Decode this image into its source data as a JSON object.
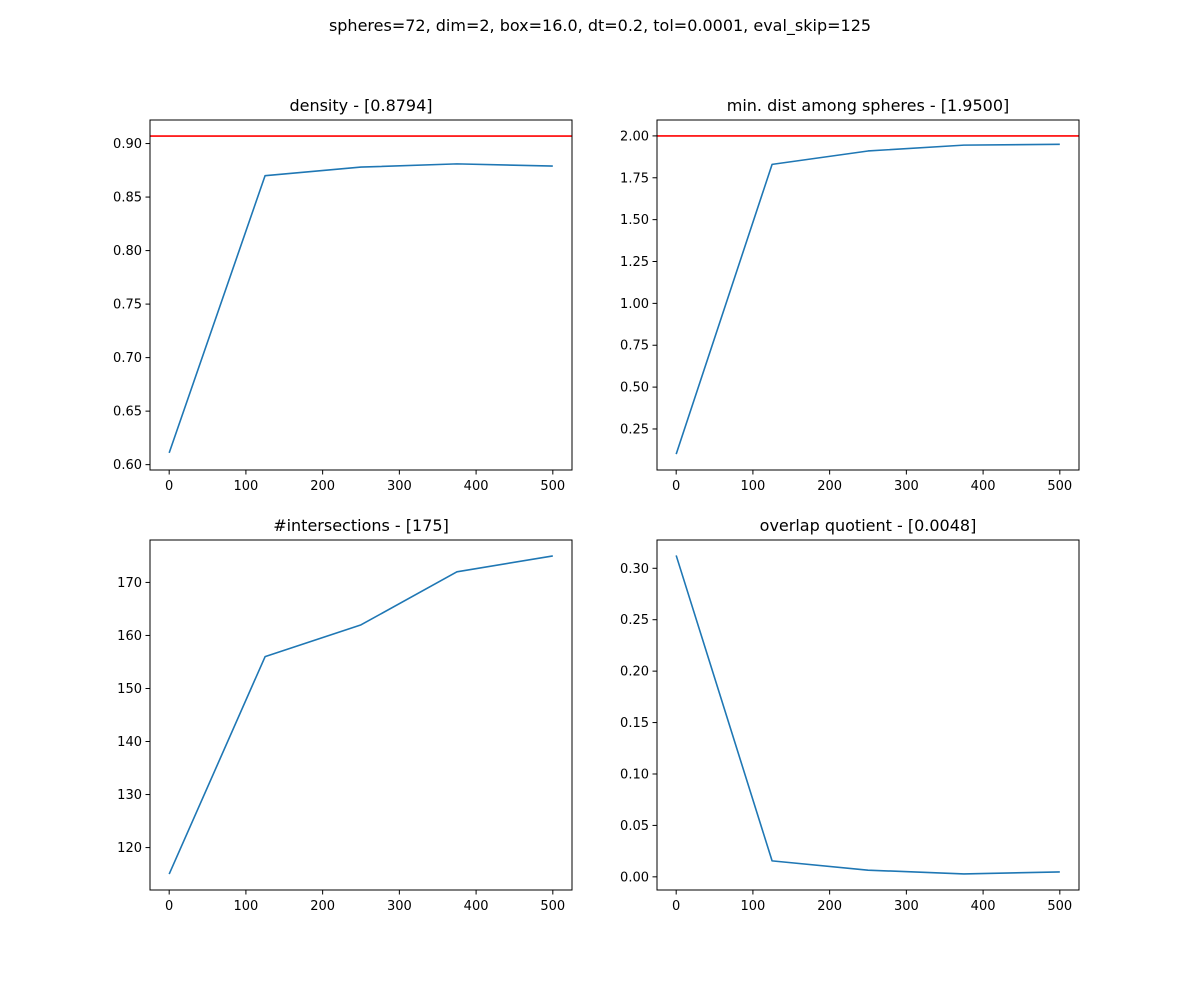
{
  "figure": {
    "suptitle": "spheres=72, dim=2, box=16.0, dt=0.2, tol=0.0001, eval_skip=125"
  },
  "colors": {
    "line": "#1f77b4",
    "reference": "#ff0000"
  },
  "chart_data": [
    {
      "type": "line",
      "title": "density - [0.8794]",
      "x": [
        0,
        125,
        250,
        375,
        500
      ],
      "series": [
        {
          "values": [
            0.611,
            0.87,
            0.878,
            0.881,
            0.879
          ]
        }
      ],
      "reference_line": 0.907,
      "xlim": [
        -25,
        525
      ],
      "ylim": [
        0.595,
        0.922
      ],
      "xticks": [
        0,
        100,
        200,
        300,
        400,
        500
      ],
      "yticks": [
        0.6,
        0.65,
        0.7,
        0.75,
        0.8,
        0.85,
        0.9
      ],
      "ytick_decimals": 2,
      "grid": false
    },
    {
      "type": "line",
      "title": "min. dist among spheres - [1.9500]",
      "x": [
        0,
        125,
        250,
        375,
        500
      ],
      "series": [
        {
          "values": [
            0.1,
            1.83,
            1.91,
            1.945,
            1.95
          ]
        }
      ],
      "reference_line": 2.0,
      "xlim": [
        -25,
        525
      ],
      "ylim": [
        0.005,
        2.095
      ],
      "xticks": [
        0,
        100,
        200,
        300,
        400,
        500
      ],
      "yticks": [
        0.25,
        0.5,
        0.75,
        1.0,
        1.25,
        1.5,
        1.75,
        2.0
      ],
      "ytick_decimals": 2,
      "grid": false
    },
    {
      "type": "line",
      "title": "#intersections - [175]",
      "x": [
        0,
        125,
        250,
        375,
        500
      ],
      "series": [
        {
          "values": [
            115,
            156,
            162,
            172,
            175
          ]
        }
      ],
      "xlim": [
        -25,
        525
      ],
      "ylim": [
        112,
        178
      ],
      "xticks": [
        0,
        100,
        200,
        300,
        400,
        500
      ],
      "yticks": [
        120,
        130,
        140,
        150,
        160,
        170
      ],
      "ytick_decimals": 0,
      "grid": false
    },
    {
      "type": "line",
      "title": "overlap quotient - [0.0048]",
      "x": [
        0,
        125,
        250,
        375,
        500
      ],
      "series": [
        {
          "values": [
            0.3125,
            0.0155,
            0.0065,
            0.0028,
            0.0048
          ]
        }
      ],
      "xlim": [
        -25,
        525
      ],
      "ylim": [
        -0.0128,
        0.3275
      ],
      "xticks": [
        0,
        100,
        200,
        300,
        400,
        500
      ],
      "yticks": [
        0.0,
        0.05,
        0.1,
        0.15,
        0.2,
        0.25,
        0.3
      ],
      "ytick_decimals": 2,
      "grid": false
    }
  ]
}
